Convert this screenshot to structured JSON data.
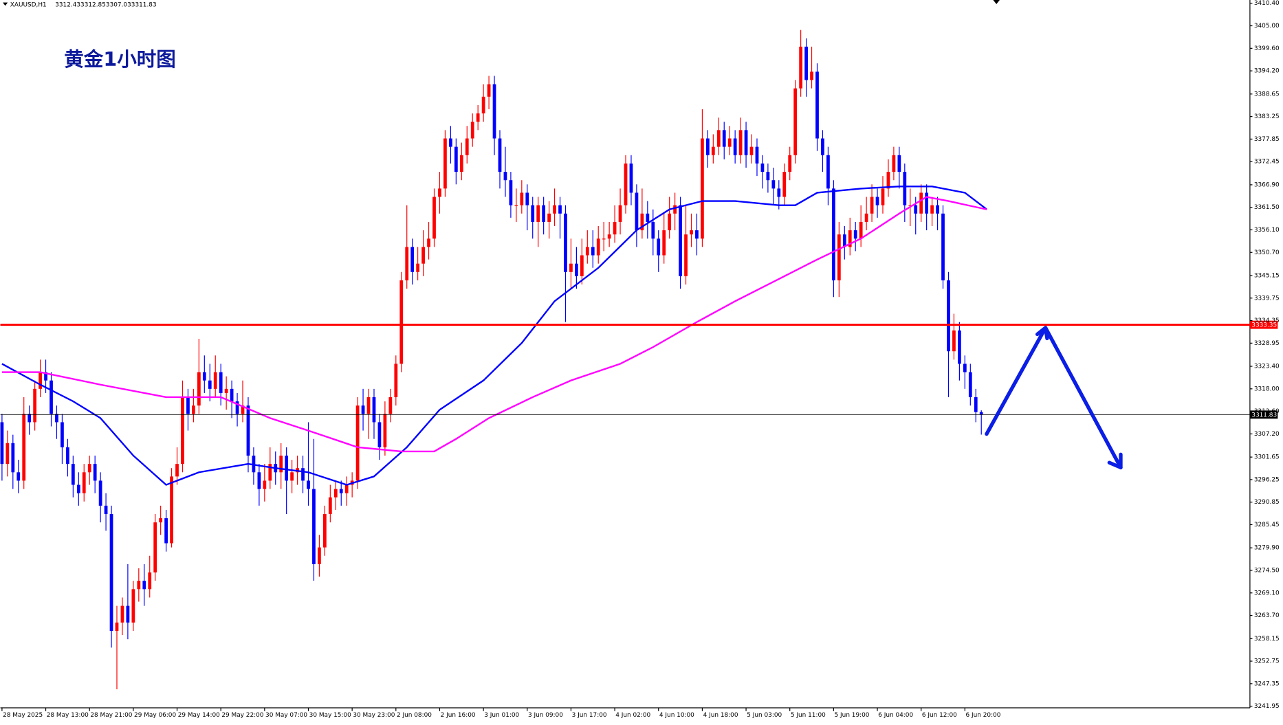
{
  "chart_data": {
    "type": "candlestick",
    "symbol": "XAUUSD,H1",
    "title": "黄金1小时图",
    "up_color": "#ff0000",
    "down_color": "#0000ff",
    "ylim": [
      3241.56,
      3411.18
    ],
    "xlim": [
      -0.3,
      228.1
    ],
    "yticks": [
      {
        "value": 3410.4,
        "label": "3410.40"
      },
      {
        "value": 3405,
        "label": "3405.00"
      },
      {
        "value": 3399.6,
        "label": "3399.60"
      },
      {
        "value": 3394.2,
        "label": "3394.20"
      },
      {
        "value": 3388.65,
        "label": "3388.65"
      },
      {
        "value": 3383.25,
        "label": "3383.25"
      },
      {
        "value": 3377.85,
        "label": "3377.85"
      },
      {
        "value": 3372.45,
        "label": "3372.45"
      },
      {
        "value": 3366.9,
        "label": "3366.90"
      },
      {
        "value": 3361.5,
        "label": "3361.50"
      },
      {
        "value": 3356.1,
        "label": "3356.10"
      },
      {
        "value": 3350.7,
        "label": "3350.70"
      },
      {
        "value": 3345.15,
        "label": "3345.15"
      },
      {
        "value": 3339.75,
        "label": "3339.75"
      },
      {
        "value": 3334.35,
        "label": "3334.35"
      },
      {
        "value": 3328.95,
        "label": "3328.95"
      },
      {
        "value": 3323.4,
        "label": "3323.40"
      },
      {
        "value": 3318,
        "label": "3318.00"
      },
      {
        "value": 3312.6,
        "label": "3312.60"
      },
      {
        "value": 3307.2,
        "label": "3307.20"
      },
      {
        "value": 3301.65,
        "label": "3301.65"
      },
      {
        "value": 3296.25,
        "label": "3296.25"
      },
      {
        "value": 3290.85,
        "label": "3290.85"
      },
      {
        "value": 3285.45,
        "label": "3285.45"
      },
      {
        "value": 3279.9,
        "label": "3279.90"
      },
      {
        "value": 3274.5,
        "label": "3274.50"
      },
      {
        "value": 3269.1,
        "label": "3269.10"
      },
      {
        "value": 3263.7,
        "label": "3263.70"
      },
      {
        "value": 3258.15,
        "label": "3258.15"
      },
      {
        "value": 3252.75,
        "label": "3252.75"
      },
      {
        "value": 3247.35,
        "label": "3247.35"
      },
      {
        "value": 3241.95,
        "label": "3241.95"
      }
    ],
    "xticks": [
      {
        "value": 0,
        "label": "28 May 2025"
      },
      {
        "value": 8,
        "label": "28 May 13:00"
      },
      {
        "value": 16,
        "label": "28 May 21:00"
      },
      {
        "value": 24,
        "label": "29 May 06:00"
      },
      {
        "value": 32,
        "label": "29 May 14:00"
      },
      {
        "value": 40,
        "label": "29 May 22:00"
      },
      {
        "value": 48,
        "label": "30 May 07:00"
      },
      {
        "value": 56,
        "label": "30 May 15:00"
      },
      {
        "value": 64,
        "label": "30 May 23:00"
      },
      {
        "value": 72,
        "label": "2 Jun 08:00"
      },
      {
        "value": 80,
        "label": "2 Jun 16:00"
      },
      {
        "value": 88,
        "label": "3 Jun 01:00"
      },
      {
        "value": 96,
        "label": "3 Jun 09:00"
      },
      {
        "value": 104,
        "label": "3 Jun 17:00"
      },
      {
        "value": 112,
        "label": "4 Jun 02:00"
      },
      {
        "value": 120,
        "label": "4 Jun 10:00"
      },
      {
        "value": 128,
        "label": "4 Jun 18:00"
      },
      {
        "value": 136,
        "label": "5 Jun 03:00"
      },
      {
        "value": 144,
        "label": "5 Jun 11:00"
      },
      {
        "value": 152,
        "label": "5 Jun 19:00"
      },
      {
        "value": 160,
        "label": "6 Jun 04:00"
      },
      {
        "value": 168,
        "label": "6 Jun 12:00"
      },
      {
        "value": 176,
        "label": "6 Jun 20:00"
      }
    ],
    "open": [
      3310,
      3300,
      3305,
      3298,
      3296,
      3312,
      3310,
      3318,
      3322,
      3320,
      3312,
      3310,
      3304,
      3300,
      3295,
      3293,
      3298,
      3300,
      3296,
      3290,
      3288,
      3260,
      3262,
      3266,
      3262,
      3270,
      3272,
      3270,
      3274,
      3286,
      3287,
      3281,
      3297,
      3300,
      3316,
      3312,
      3314,
      3322,
      3320,
      3318,
      3322,
      3317,
      3318,
      3315,
      3312,
      3314,
      3302,
      3298,
      3294,
      3296,
      3300,
      3298,
      3302,
      3296,
      3298,
      3299,
      3296,
      3294,
      3276,
      3280,
      3288,
      3292,
      3294,
      3293,
      3295,
      3296,
      3314,
      3312,
      3316,
      3310,
      3304,
      3312,
      3316,
      3324,
      3344,
      3352,
      3346,
      3348,
      3352,
      3354,
      3364,
      3366,
      3378,
      3376,
      3370,
      3374,
      3378,
      3382,
      3384,
      3388,
      3391,
      3378,
      3370,
      3368,
      3362,
      3362,
      3365,
      3362,
      3358,
      3362,
      3358,
      3360,
      3362,
      3360,
      3346,
      3348,
      3345,
      3350,
      3352,
      3350,
      3354,
      3354,
      3355,
      3358,
      3362,
      3372,
      3365,
      3356,
      3360,
      3358,
      3354,
      3350,
      3356,
      3360,
      3362,
      3345,
      3355,
      3356,
      3354,
      3378,
      3374,
      3376,
      3380,
      3376,
      3378,
      3374,
      3380,
      3374,
      3376,
      3372,
      3370,
      3368,
      3366,
      3364,
      3370,
      3374,
      3390,
      3400,
      3392,
      3394,
      3378,
      3374,
      3366,
      3344,
      3355,
      3352,
      3356,
      3354,
      3358,
      3360,
      3364,
      3362,
      3366,
      3370,
      3374,
      3370,
      3362,
      3362,
      3360,
      3365,
      3360,
      3362,
      3360,
      3344,
      3327,
      3332,
      3324,
      3322,
      3316,
      3312.43
    ],
    "high": [
      3312,
      3308,
      3307,
      3301,
      3316,
      3314,
      3320,
      3325,
      3325,
      3322,
      3314,
      3312,
      3306,
      3302,
      3298,
      3300,
      3302,
      3302,
      3298,
      3293,
      3290,
      3266,
      3268,
      3276,
      3272,
      3275,
      3276,
      3278,
      3288,
      3290,
      3289,
      3299,
      3304,
      3320,
      3318,
      3318,
      3330,
      3326,
      3324,
      3326,
      3324,
      3321,
      3320,
      3317,
      3320,
      3316,
      3304,
      3300,
      3300,
      3304,
      3303,
      3305,
      3304,
      3301,
      3302,
      3302,
      3310,
      3306,
      3283,
      3290,
      3295,
      3296,
      3296,
      3297,
      3298,
      3316,
      3318,
      3318,
      3318,
      3312,
      3315,
      3318,
      3326,
      3346,
      3362,
      3354,
      3352,
      3356,
      3358,
      3366,
      3370,
      3380,
      3381,
      3378,
      3377,
      3381,
      3384,
      3386,
      3391,
      3393,
      3393,
      3380,
      3376,
      3370,
      3366,
      3368,
      3367,
      3364,
      3364,
      3364,
      3363,
      3366,
      3364,
      3362,
      3354,
      3352,
      3354,
      3356,
      3356,
      3357,
      3358,
      3358,
      3362,
      3366,
      3374,
      3374,
      3367,
      3366,
      3363,
      3361,
      3356,
      3360,
      3364,
      3365,
      3364,
      3362,
      3360,
      3360,
      3385,
      3380,
      3379,
      3383,
      3382,
      3381,
      3380,
      3383,
      3382,
      3379,
      3378,
      3374,
      3372,
      3371,
      3368,
      3372,
      3376,
      3392,
      3404,
      3402,
      3400,
      3396,
      3380,
      3376,
      3368,
      3358,
      3357,
      3359,
      3358,
      3362,
      3364,
      3367,
      3366,
      3369,
      3373,
      3376,
      3376,
      3372,
      3366,
      3364,
      3367,
      3367,
      3364,
      3364,
      3362,
      3346,
      3336,
      3334,
      3326,
      3324,
      3318,
      3312.85
    ],
    "low": [
      3296,
      3297,
      3294,
      3293,
      3294,
      3307,
      3308,
      3316,
      3317,
      3309,
      3306,
      3300,
      3297,
      3292,
      3290,
      3291,
      3295,
      3293,
      3286,
      3284,
      3256,
      3246,
      3259,
      3258,
      3260,
      3267,
      3266,
      3268,
      3272,
      3283,
      3279,
      3280,
      3295,
      3298,
      3308,
      3310,
      3312,
      3317,
      3315,
      3316,
      3314,
      3313,
      3311,
      3309,
      3310,
      3298,
      3295,
      3290,
      3291,
      3294,
      3295,
      3294,
      3288,
      3293,
      3295,
      3293,
      3290,
      3272,
      3273,
      3278,
      3286,
      3289,
      3290,
      3290,
      3292,
      3294,
      3308,
      3306,
      3306,
      3301,
      3302,
      3310,
      3314,
      3322,
      3342,
      3343,
      3344,
      3345,
      3349,
      3352,
      3360,
      3364,
      3372,
      3367,
      3368,
      3372,
      3376,
      3380,
      3382,
      3385,
      3374,
      3366,
      3364,
      3359,
      3358,
      3360,
      3356,
      3354,
      3352,
      3355,
      3354,
      3357,
      3354,
      3334,
      3342,
      3342,
      3343,
      3348,
      3347,
      3348,
      3351,
      3352,
      3353,
      3355,
      3360,
      3362,
      3352,
      3354,
      3354,
      3350,
      3346,
      3348,
      3354,
      3356,
      3342,
      3343,
      3352,
      3350,
      3352,
      3371,
      3372,
      3374,
      3373,
      3374,
      3372,
      3372,
      3371,
      3372,
      3369,
      3366,
      3365,
      3362,
      3361,
      3362,
      3368,
      3372,
      3388,
      3388,
      3390,
      3375,
      3370,
      3362,
      3340,
      3340,
      3349,
      3350,
      3351,
      3352,
      3356,
      3358,
      3359,
      3360,
      3364,
      3368,
      3366,
      3358,
      3357,
      3355,
      3358,
      3356,
      3357,
      3356,
      3342,
      3316,
      3325,
      3320,
      3318,
      3314,
      3310,
      3307.03
    ],
    "close": [
      3300,
      3305,
      3298,
      3296,
      3312,
      3310,
      3318,
      3322,
      3320,
      3312,
      3310,
      3304,
      3300,
      3295,
      3293,
      3298,
      3300,
      3296,
      3290,
      3288,
      3260,
      3262,
      3266,
      3262,
      3270,
      3272,
      3270,
      3274,
      3286,
      3287,
      3281,
      3297,
      3300,
      3316,
      3312,
      3314,
      3322,
      3320,
      3318,
      3322,
      3317,
      3318,
      3315,
      3312,
      3314,
      3302,
      3298,
      3294,
      3296,
      3300,
      3298,
      3302,
      3296,
      3298,
      3299,
      3296,
      3294,
      3276,
      3280,
      3288,
      3292,
      3294,
      3293,
      3295,
      3296,
      3314,
      3312,
      3316,
      3310,
      3304,
      3312,
      3316,
      3324,
      3344,
      3352,
      3346,
      3348,
      3352,
      3354,
      3364,
      3366,
      3378,
      3376,
      3370,
      3374,
      3378,
      3382,
      3384,
      3388,
      3391,
      3378,
      3370,
      3368,
      3362,
      3362,
      3365,
      3362,
      3358,
      3362,
      3358,
      3360,
      3362,
      3360,
      3346,
      3348,
      3345,
      3350,
      3352,
      3350,
      3354,
      3354,
      3355,
      3358,
      3362,
      3372,
      3365,
      3356,
      3360,
      3358,
      3354,
      3350,
      3356,
      3360,
      3362,
      3345,
      3355,
      3356,
      3354,
      3378,
      3374,
      3376,
      3380,
      3376,
      3378,
      3374,
      3380,
      3374,
      3376,
      3372,
      3370,
      3368,
      3366,
      3364,
      3370,
      3374,
      3390,
      3400,
      3392,
      3394,
      3378,
      3374,
      3366,
      3344,
      3355,
      3352,
      3356,
      3354,
      3358,
      3360,
      3364,
      3362,
      3366,
      3370,
      3374,
      3370,
      3362,
      3362,
      3360,
      3365,
      3360,
      3362,
      3360,
      3344,
      3327,
      3332,
      3324,
      3322,
      3316,
      3312.43,
      3311.83
    ],
    "overlays": [
      {
        "color": "#0000ff",
        "x": [
          0,
          7,
          13,
          18,
          24,
          30,
          36,
          45,
          50,
          56,
          63,
          68,
          74,
          80,
          88,
          95,
          101,
          109,
          116,
          122,
          128,
          134,
          142,
          145,
          149,
          157,
          164,
          170,
          176,
          180
        ],
        "values": [
          3324,
          3319,
          3315,
          3311,
          3302,
          3295,
          3298,
          3300,
          3299,
          3298,
          3295,
          3297,
          3304,
          3313,
          3320,
          3329,
          3339,
          3347,
          3356,
          3361,
          3363,
          3363,
          3362,
          3362,
          3365,
          3366,
          3366.5,
          3366.5,
          3365,
          3361
        ]
      },
      {
        "color": "#ff00ff",
        "x": [
          0,
          7,
          18,
          30,
          40,
          49,
          56,
          65,
          73,
          79,
          83,
          89,
          97,
          104,
          113,
          119,
          127,
          134,
          143,
          149,
          157,
          164,
          169,
          173,
          180
        ],
        "values": [
          3322,
          3322,
          3319,
          3316,
          3316,
          3311,
          3308,
          3304,
          3303,
          3303,
          3306,
          3311,
          3316,
          3320,
          3324,
          3328,
          3334,
          3339,
          3345,
          3349,
          3354,
          3360,
          3364,
          3363,
          3361
        ]
      }
    ],
    "hlines": [
      {
        "value": 3333.35,
        "color": "#ff0000"
      }
    ],
    "last_price_color": "#000000"
  }
}
